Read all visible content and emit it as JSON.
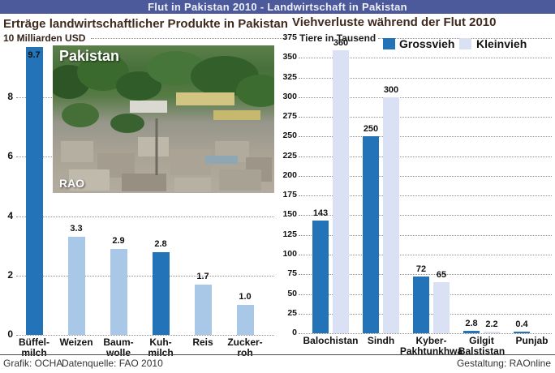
{
  "header": {
    "title": "Flut in Pakistan 2010 - Landwirtschaft in Pakistan"
  },
  "photo": {
    "region_label": "Pakistan",
    "watermark": "RAO"
  },
  "footer": {
    "credit_graphic": "Grafik: OCHA",
    "credit_source": "Datenquelle: FAO 2010",
    "credit_design": "Gestaltung: RAOnline"
  },
  "colors": {
    "header_bg": "#4c5a9b",
    "dark_bar": "#2273b8",
    "light_bar_left": "#a9c7e6",
    "light_bar_right": "#dbe1f5",
    "grid": "#8f8f8f",
    "title_text": "#3f2a1d"
  },
  "chart_data": [
    {
      "type": "bar",
      "title": "Erträge landwirtschaftlicher Produkte in Pakistan",
      "axis_label": "10 Milliarden USD",
      "ylabel": "Milliarden USD",
      "ylim": [
        0,
        10
      ],
      "yticks": [
        8,
        6,
        4,
        2,
        0
      ],
      "grid": "dotted-horizontal",
      "categories": [
        [
          "Büffel-",
          "milch"
        ],
        [
          "Weizen"
        ],
        [
          "Baum-",
          "wolle"
        ],
        [
          "Kuh-",
          "milch"
        ],
        [
          "Reis"
        ],
        [
          "Zucker-",
          "roh"
        ]
      ],
      "values": [
        9.7,
        3.3,
        2.9,
        2.8,
        1.7,
        1.0
      ],
      "value_labels": [
        "9.7",
        "3.3",
        "2.9",
        "2.8",
        "1.7",
        "1.0"
      ],
      "bar_colors": [
        "#2273b8",
        "#a9c7e6",
        "#a9c7e6",
        "#2273b8",
        "#a9c7e6",
        "#a9c7e6"
      ]
    },
    {
      "type": "grouped-bar",
      "title": "Viehverluste während der Flut 2010",
      "axis_label": "Tiere in Tausend",
      "ylabel": "Tiere in Tausend",
      "ylim": [
        0,
        375
      ],
      "ytick_step": 25,
      "grid": "dotted-horizontal",
      "legend_position": "top",
      "categories": [
        [
          "Balochistan"
        ],
        [
          "Sindh"
        ],
        [
          "Kyber-",
          "Pakhtunkhwa"
        ],
        [
          "Gilgit",
          "Balstistan"
        ],
        [
          "Punjab"
        ]
      ],
      "series": [
        {
          "name": "Grossvieh",
          "color": "#2273b8",
          "values": [
            143,
            250,
            72,
            2.8,
            0.4
          ],
          "value_labels": [
            "143",
            "250",
            "72",
            "2.8",
            "0.4"
          ]
        },
        {
          "name": "Kleinvieh",
          "color": "#dbe1f5",
          "values": [
            360,
            300,
            65,
            2.2,
            null
          ],
          "value_labels": [
            "360",
            "300",
            "65",
            "2.2",
            ""
          ]
        }
      ]
    }
  ]
}
